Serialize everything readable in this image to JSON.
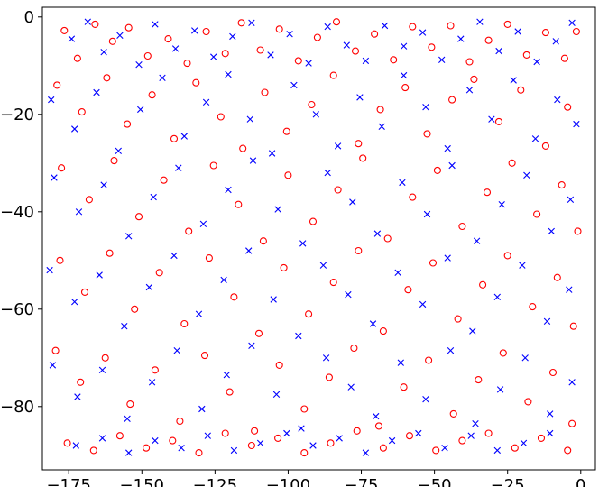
{
  "chart_data": {
    "type": "scatter",
    "title": "",
    "xlabel": "",
    "ylabel": "",
    "xlim": [
      -184,
      5
    ],
    "ylim": [
      -93,
      2
    ],
    "x_ticks": [
      -175,
      -150,
      -125,
      -100,
      -75,
      -50,
      -25,
      0
    ],
    "x_tick_labels": [
      "−175",
      "−150",
      "−125",
      "−100",
      "−75",
      "−50",
      "−25",
      "0"
    ],
    "y_ticks": [
      0,
      -20,
      -40,
      -60,
      -80
    ],
    "y_tick_labels": [
      "0",
      "−20",
      "−40",
      "−60",
      "−80"
    ],
    "grid": false,
    "legend": "none",
    "colors": {
      "o": "#ff0000",
      "x": "#0000ff"
    },
    "series": [
      {
        "marker": "o",
        "color": "#ff0000",
        "points": [
          [
            -176.5,
            -2.8
          ],
          [
            -172.0,
            -8.5
          ],
          [
            -166.0,
            -1.5
          ],
          [
            -160.0,
            -5.0
          ],
          [
            -154.5,
            -2.2
          ],
          [
            -148.0,
            -8.0
          ],
          [
            -141.0,
            -4.5
          ],
          [
            -134.5,
            -9.5
          ],
          [
            -128.0,
            -3.0
          ],
          [
            -121.5,
            -7.5
          ],
          [
            -116.0,
            -1.2
          ],
          [
            -109.5,
            -6.8
          ],
          [
            -103.0,
            -2.5
          ],
          [
            -96.5,
            -9.0
          ],
          [
            -90.0,
            -4.2
          ],
          [
            -83.5,
            -1.0
          ],
          [
            -77.0,
            -7.0
          ],
          [
            -70.5,
            -3.5
          ],
          [
            -64.0,
            -8.8
          ],
          [
            -57.5,
            -2.0
          ],
          [
            -51.0,
            -6.2
          ],
          [
            -44.5,
            -1.8
          ],
          [
            -38.0,
            -9.2
          ],
          [
            -31.5,
            -4.8
          ],
          [
            -25.0,
            -1.5
          ],
          [
            -18.5,
            -7.8
          ],
          [
            -12.0,
            -3.2
          ],
          [
            -5.5,
            -8.5
          ],
          [
            -1.5,
            -3.0
          ],
          [
            -179.0,
            -14.0
          ],
          [
            -170.5,
            -19.5
          ],
          [
            -162.0,
            -12.5
          ],
          [
            -155.0,
            -22.0
          ],
          [
            -146.5,
            -16.0
          ],
          [
            -139.0,
            -25.0
          ],
          [
            -131.5,
            -13.5
          ],
          [
            -123.0,
            -20.5
          ],
          [
            -115.5,
            -27.0
          ],
          [
            -108.0,
            -15.5
          ],
          [
            -100.5,
            -23.5
          ],
          [
            -92.0,
            -18.0
          ],
          [
            -84.5,
            -12.0
          ],
          [
            -76.0,
            -26.0
          ],
          [
            -68.5,
            -19.0
          ],
          [
            -60.0,
            -14.5
          ],
          [
            -52.5,
            -24.0
          ],
          [
            -44.0,
            -17.0
          ],
          [
            -36.5,
            -12.8
          ],
          [
            -28.0,
            -21.5
          ],
          [
            -20.5,
            -15.0
          ],
          [
            -12.0,
            -26.5
          ],
          [
            -4.5,
            -18.5
          ],
          [
            -177.5,
            -31.0
          ],
          [
            -168.0,
            -37.5
          ],
          [
            -159.5,
            -29.5
          ],
          [
            -151.0,
            -41.0
          ],
          [
            -142.5,
            -33.5
          ],
          [
            -134.0,
            -44.0
          ],
          [
            -125.5,
            -30.5
          ],
          [
            -117.0,
            -38.5
          ],
          [
            -108.5,
            -46.0
          ],
          [
            -100.0,
            -32.5
          ],
          [
            -91.5,
            -42.0
          ],
          [
            -83.0,
            -35.5
          ],
          [
            -74.5,
            -29.0
          ],
          [
            -66.0,
            -45.5
          ],
          [
            -57.5,
            -37.0
          ],
          [
            -49.0,
            -31.5
          ],
          [
            -40.5,
            -43.0
          ],
          [
            -32.0,
            -36.0
          ],
          [
            -23.5,
            -30.0
          ],
          [
            -15.0,
            -40.5
          ],
          [
            -6.5,
            -34.5
          ],
          [
            -1.0,
            -44.0
          ],
          [
            -178.0,
            -50.0
          ],
          [
            -169.5,
            -56.5
          ],
          [
            -161.0,
            -48.5
          ],
          [
            -152.5,
            -60.0
          ],
          [
            -144.0,
            -52.5
          ],
          [
            -135.5,
            -63.0
          ],
          [
            -127.0,
            -49.5
          ],
          [
            -118.5,
            -57.5
          ],
          [
            -110.0,
            -65.0
          ],
          [
            -101.5,
            -51.5
          ],
          [
            -93.0,
            -61.0
          ],
          [
            -84.5,
            -54.5
          ],
          [
            -76.0,
            -48.0
          ],
          [
            -67.5,
            -64.5
          ],
          [
            -59.0,
            -56.0
          ],
          [
            -50.5,
            -50.5
          ],
          [
            -42.0,
            -62.0
          ],
          [
            -33.5,
            -55.0
          ],
          [
            -25.0,
            -49.0
          ],
          [
            -16.5,
            -59.5
          ],
          [
            -8.0,
            -53.5
          ],
          [
            -2.5,
            -63.5
          ],
          [
            -179.5,
            -68.5
          ],
          [
            -171.0,
            -75.0
          ],
          [
            -162.5,
            -70.0
          ],
          [
            -154.0,
            -79.5
          ],
          [
            -145.5,
            -72.5
          ],
          [
            -137.0,
            -83.0
          ],
          [
            -128.5,
            -69.5
          ],
          [
            -120.0,
            -77.0
          ],
          [
            -111.5,
            -85.0
          ],
          [
            -103.0,
            -71.5
          ],
          [
            -94.5,
            -80.5
          ],
          [
            -86.0,
            -74.0
          ],
          [
            -77.5,
            -68.0
          ],
          [
            -69.0,
            -84.0
          ],
          [
            -60.5,
            -76.0
          ],
          [
            -52.0,
            -70.5
          ],
          [
            -43.5,
            -81.5
          ],
          [
            -35.0,
            -74.5
          ],
          [
            -26.5,
            -69.0
          ],
          [
            -18.0,
            -79.0
          ],
          [
            -9.5,
            -73.0
          ],
          [
            -3.0,
            -83.5
          ],
          [
            -175.5,
            -87.5
          ],
          [
            -166.5,
            -89.0
          ],
          [
            -157.5,
            -86.0
          ],
          [
            -148.5,
            -88.5
          ],
          [
            -139.5,
            -87.0
          ],
          [
            -130.5,
            -89.5
          ],
          [
            -121.5,
            -85.5
          ],
          [
            -112.5,
            -88.0
          ],
          [
            -103.5,
            -86.5
          ],
          [
            -94.5,
            -89.5
          ],
          [
            -85.5,
            -87.5
          ],
          [
            -76.5,
            -85.0
          ],
          [
            -67.5,
            -88.5
          ],
          [
            -58.5,
            -86.0
          ],
          [
            -49.5,
            -89.0
          ],
          [
            -40.5,
            -87.0
          ],
          [
            -31.5,
            -85.5
          ],
          [
            -22.5,
            -88.5
          ],
          [
            -13.5,
            -86.5
          ],
          [
            -4.5,
            -89.0
          ]
        ]
      },
      {
        "marker": "x",
        "color": "#0000ff",
        "points": [
          [
            -174.0,
            -4.5
          ],
          [
            -168.5,
            -1.0
          ],
          [
            -163.0,
            -7.2
          ],
          [
            -157.5,
            -3.8
          ],
          [
            -151.0,
            -9.8
          ],
          [
            -145.5,
            -1.5
          ],
          [
            -138.5,
            -6.5
          ],
          [
            -132.0,
            -2.8
          ],
          [
            -125.5,
            -8.2
          ],
          [
            -119.0,
            -4.0
          ],
          [
            -112.5,
            -1.2
          ],
          [
            -106.0,
            -7.8
          ],
          [
            -99.5,
            -3.5
          ],
          [
            -93.0,
            -9.5
          ],
          [
            -86.5,
            -2.0
          ],
          [
            -80.0,
            -5.8
          ],
          [
            -73.5,
            -9.0
          ],
          [
            -67.0,
            -1.8
          ],
          [
            -60.5,
            -6.0
          ],
          [
            -54.0,
            -3.2
          ],
          [
            -47.5,
            -8.8
          ],
          [
            -41.0,
            -4.5
          ],
          [
            -34.5,
            -1.0
          ],
          [
            -28.0,
            -7.0
          ],
          [
            -21.5,
            -3.0
          ],
          [
            -15.0,
            -9.2
          ],
          [
            -8.5,
            -5.0
          ],
          [
            -3.0,
            -1.2
          ],
          [
            -181.0,
            -17.0
          ],
          [
            -173.0,
            -23.0
          ],
          [
            -165.5,
            -15.5
          ],
          [
            -158.0,
            -27.5
          ],
          [
            -150.5,
            -19.0
          ],
          [
            -143.0,
            -12.5
          ],
          [
            -135.5,
            -24.5
          ],
          [
            -128.0,
            -17.5
          ],
          [
            -120.5,
            -11.8
          ],
          [
            -113.0,
            -21.0
          ],
          [
            -105.5,
            -28.0
          ],
          [
            -98.0,
            -14.0
          ],
          [
            -90.5,
            -20.0
          ],
          [
            -83.0,
            -26.5
          ],
          [
            -75.5,
            -16.5
          ],
          [
            -68.0,
            -22.5
          ],
          [
            -60.5,
            -12.0
          ],
          [
            -53.0,
            -18.5
          ],
          [
            -45.5,
            -27.0
          ],
          [
            -38.0,
            -15.0
          ],
          [
            -30.5,
            -21.0
          ],
          [
            -23.0,
            -13.0
          ],
          [
            -15.5,
            -25.0
          ],
          [
            -8.0,
            -17.0
          ],
          [
            -1.5,
            -22.0
          ],
          [
            -180.0,
            -33.0
          ],
          [
            -171.5,
            -40.0
          ],
          [
            -163.0,
            -34.5
          ],
          [
            -154.5,
            -45.0
          ],
          [
            -146.0,
            -37.0
          ],
          [
            -137.5,
            -31.0
          ],
          [
            -129.0,
            -42.5
          ],
          [
            -120.5,
            -35.5
          ],
          [
            -112.0,
            -29.5
          ],
          [
            -103.5,
            -39.5
          ],
          [
            -95.0,
            -46.5
          ],
          [
            -86.5,
            -32.0
          ],
          [
            -78.0,
            -38.0
          ],
          [
            -69.5,
            -44.5
          ],
          [
            -61.0,
            -34.0
          ],
          [
            -52.5,
            -40.5
          ],
          [
            -44.0,
            -30.5
          ],
          [
            -35.5,
            -46.0
          ],
          [
            -27.0,
            -38.5
          ],
          [
            -18.5,
            -32.5
          ],
          [
            -10.0,
            -44.0
          ],
          [
            -3.5,
            -37.5
          ],
          [
            -181.5,
            -52.0
          ],
          [
            -173.0,
            -58.5
          ],
          [
            -164.5,
            -53.0
          ],
          [
            -156.0,
            -63.5
          ],
          [
            -147.5,
            -55.5
          ],
          [
            -139.0,
            -49.0
          ],
          [
            -130.5,
            -61.0
          ],
          [
            -122.0,
            -54.0
          ],
          [
            -113.5,
            -48.0
          ],
          [
            -105.0,
            -58.0
          ],
          [
            -96.5,
            -65.5
          ],
          [
            -88.0,
            -51.0
          ],
          [
            -79.5,
            -57.0
          ],
          [
            -71.0,
            -63.0
          ],
          [
            -62.5,
            -52.5
          ],
          [
            -54.0,
            -59.0
          ],
          [
            -45.5,
            -49.5
          ],
          [
            -37.0,
            -64.5
          ],
          [
            -28.5,
            -57.5
          ],
          [
            -20.0,
            -51.0
          ],
          [
            -11.5,
            -62.5
          ],
          [
            -4.0,
            -56.0
          ],
          [
            -180.5,
            -71.5
          ],
          [
            -172.0,
            -78.0
          ],
          [
            -163.5,
            -72.5
          ],
          [
            -155.0,
            -82.5
          ],
          [
            -146.5,
            -75.0
          ],
          [
            -138.0,
            -68.5
          ],
          [
            -129.5,
            -80.5
          ],
          [
            -121.0,
            -73.5
          ],
          [
            -112.5,
            -67.5
          ],
          [
            -104.0,
            -77.5
          ],
          [
            -95.5,
            -84.5
          ],
          [
            -87.0,
            -70.0
          ],
          [
            -78.5,
            -76.0
          ],
          [
            -70.0,
            -82.0
          ],
          [
            -61.5,
            -71.0
          ],
          [
            -53.0,
            -78.5
          ],
          [
            -44.5,
            -68.5
          ],
          [
            -36.0,
            -83.5
          ],
          [
            -27.5,
            -76.5
          ],
          [
            -19.0,
            -70.0
          ],
          [
            -10.5,
            -81.5
          ],
          [
            -3.0,
            -75.0
          ],
          [
            -172.5,
            -88.0
          ],
          [
            -163.5,
            -86.5
          ],
          [
            -154.5,
            -89.5
          ],
          [
            -145.5,
            -87.0
          ],
          [
            -136.5,
            -88.5
          ],
          [
            -127.5,
            -86.0
          ],
          [
            -118.5,
            -89.0
          ],
          [
            -109.5,
            -87.5
          ],
          [
            -100.5,
            -85.5
          ],
          [
            -91.5,
            -88.0
          ],
          [
            -82.5,
            -86.5
          ],
          [
            -73.5,
            -89.5
          ],
          [
            -64.5,
            -87.0
          ],
          [
            -55.5,
            -85.5
          ],
          [
            -46.5,
            -88.5
          ],
          [
            -37.5,
            -86.0
          ],
          [
            -28.5,
            -89.0
          ],
          [
            -19.5,
            -87.5
          ],
          [
            -10.5,
            -85.5
          ]
        ]
      }
    ]
  }
}
